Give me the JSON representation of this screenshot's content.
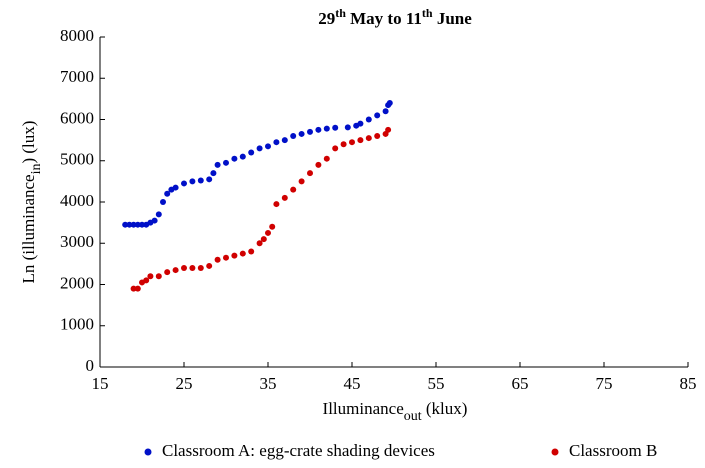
{
  "chart_data": {
    "type": "scatter",
    "title": [
      "29",
      "th",
      " May to 11",
      "th",
      " June"
    ],
    "x_label": [
      "Illuminance",
      "out",
      " (klux)"
    ],
    "y_label": [
      "Ln (illuminance",
      "in",
      ") (lux)"
    ],
    "xlim": [
      15,
      85
    ],
    "xticks": [
      15,
      25,
      35,
      45,
      55,
      65,
      75,
      85
    ],
    "ylim": [
      0,
      8000
    ],
    "yticks": [
      0,
      1000,
      2000,
      3000,
      4000,
      5000,
      6000,
      7000,
      8000
    ],
    "legend": "bottom",
    "series": [
      {
        "name": "Classroom A: egg-crate shading devices",
        "color": "#0010c8",
        "x": [
          18,
          18.5,
          19,
          19.5,
          20,
          20.5,
          21,
          21.5,
          22,
          22.5,
          23,
          23.5,
          24,
          25,
          26,
          27,
          28,
          28.5,
          29,
          30,
          31,
          32,
          33,
          34,
          35,
          36,
          37,
          38,
          39,
          40,
          41,
          42,
          43,
          44.5,
          45.5,
          46,
          47,
          48,
          49,
          49.3,
          49.5
        ],
        "values": [
          3450,
          3450,
          3450,
          3450,
          3450,
          3450,
          3500,
          3550,
          3700,
          4000,
          4200,
          4300,
          4350,
          4450,
          4500,
          4520,
          4550,
          4700,
          4900,
          4950,
          5050,
          5100,
          5200,
          5300,
          5350,
          5450,
          5500,
          5600,
          5650,
          5700,
          5750,
          5780,
          5800,
          5810,
          5850,
          5900,
          6000,
          6100,
          6200,
          6350,
          6400
        ]
      },
      {
        "name": "Classroom B",
        "color": "#d00000",
        "x": [
          19,
          19.5,
          20,
          20.5,
          21,
          22,
          23,
          24,
          25,
          26,
          27,
          28,
          29,
          30,
          31,
          32,
          33,
          34,
          34.5,
          35,
          35.5,
          36,
          37,
          38,
          39,
          40,
          41,
          42,
          43,
          44,
          45,
          46,
          47,
          48,
          49,
          49.3
        ],
        "values": [
          1900,
          1900,
          2050,
          2100,
          2200,
          2200,
          2300,
          2350,
          2400,
          2400,
          2400,
          2450,
          2600,
          2650,
          2700,
          2750,
          2800,
          3000,
          3100,
          3250,
          3400,
          3950,
          4100,
          4300,
          4500,
          4700,
          4900,
          5050,
          5300,
          5400,
          5450,
          5500,
          5550,
          5600,
          5650,
          5750
        ]
      }
    ]
  }
}
